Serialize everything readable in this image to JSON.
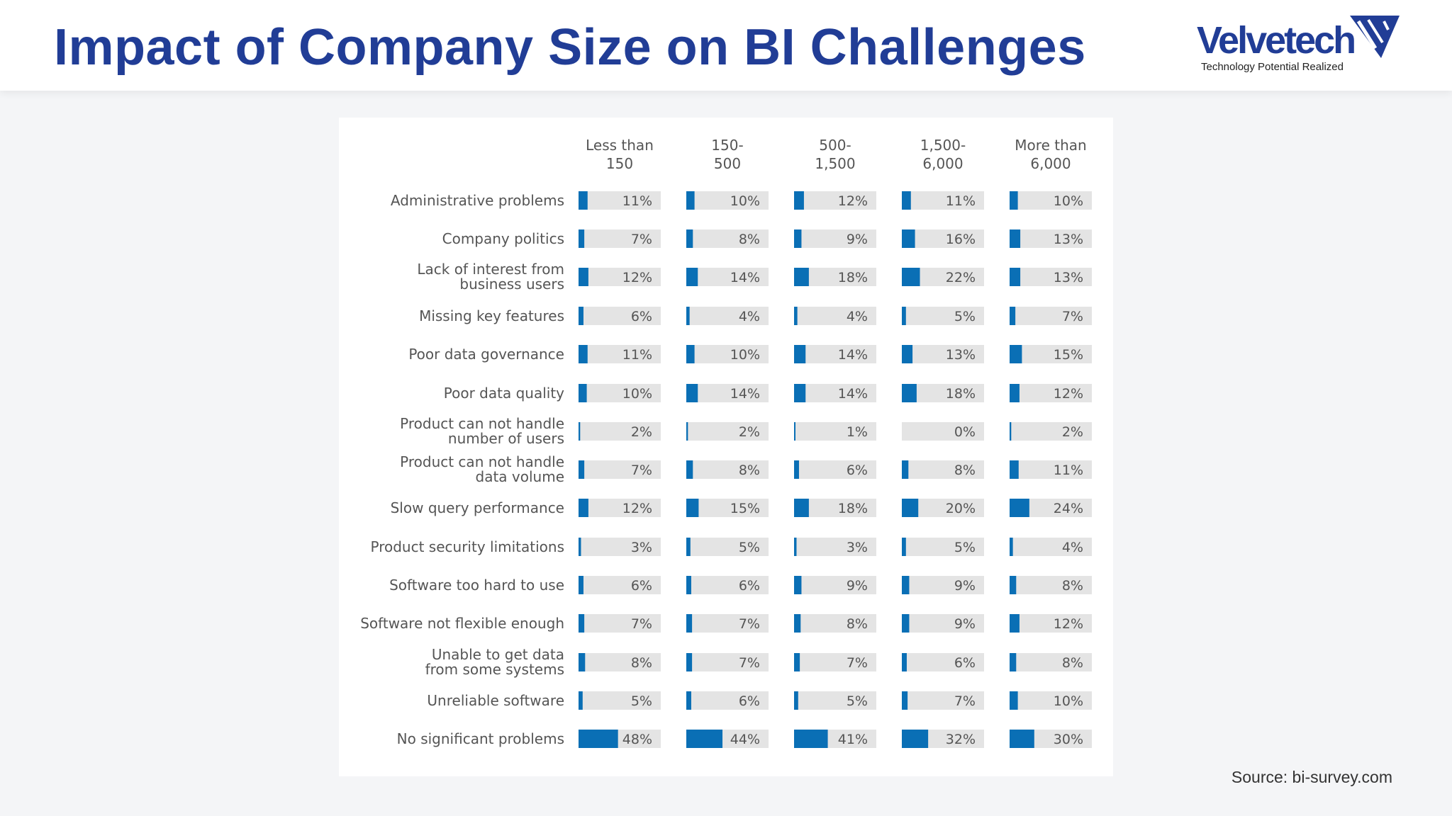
{
  "page": {
    "title": "Impact of Company Size on BI Challenges",
    "source": "Source: bi-survey.com"
  },
  "logo": {
    "name": "Velvetech",
    "tagline": "Technology Potential Realized",
    "color": "#213d96"
  },
  "colors": {
    "bar_fill": "#0a6fb5",
    "bar_track": "#e4e4e4",
    "label_text": "#555555"
  },
  "chart_data": {
    "type": "bar",
    "title": "",
    "xlabel": "",
    "ylabel": "",
    "xlim": [
      0,
      100
    ],
    "grid": false,
    "legend": "none",
    "categories": [
      "Administrative problems",
      "Company politics",
      "Lack of interest from business users",
      "Missing key features",
      "Poor data governance",
      "Poor data quality",
      "Product can not handle number of users",
      "Product can not handle data volume",
      "Slow query performance",
      "Product security limitations",
      "Software too hard to use",
      "Software not flexible enough",
      "Unable to get data from some systems",
      "Unreliable software",
      "No significant problems"
    ],
    "series": [
      {
        "name": "Less than 150",
        "values": [
          11,
          7,
          12,
          6,
          11,
          10,
          2,
          7,
          12,
          3,
          6,
          7,
          8,
          5,
          48
        ]
      },
      {
        "name": "150-500",
        "values": [
          10,
          8,
          14,
          4,
          10,
          14,
          2,
          8,
          15,
          5,
          6,
          7,
          7,
          6,
          44
        ]
      },
      {
        "name": "500-1,500",
        "values": [
          12,
          9,
          18,
          4,
          14,
          14,
          1,
          6,
          18,
          3,
          9,
          8,
          7,
          5,
          41
        ]
      },
      {
        "name": "1,500-6,000",
        "values": [
          11,
          16,
          22,
          5,
          13,
          18,
          0,
          8,
          20,
          5,
          9,
          9,
          6,
          7,
          32
        ]
      },
      {
        "name": "More than 6,000",
        "values": [
          10,
          13,
          13,
          7,
          15,
          12,
          2,
          11,
          24,
          4,
          8,
          12,
          8,
          10,
          30
        ]
      }
    ]
  }
}
